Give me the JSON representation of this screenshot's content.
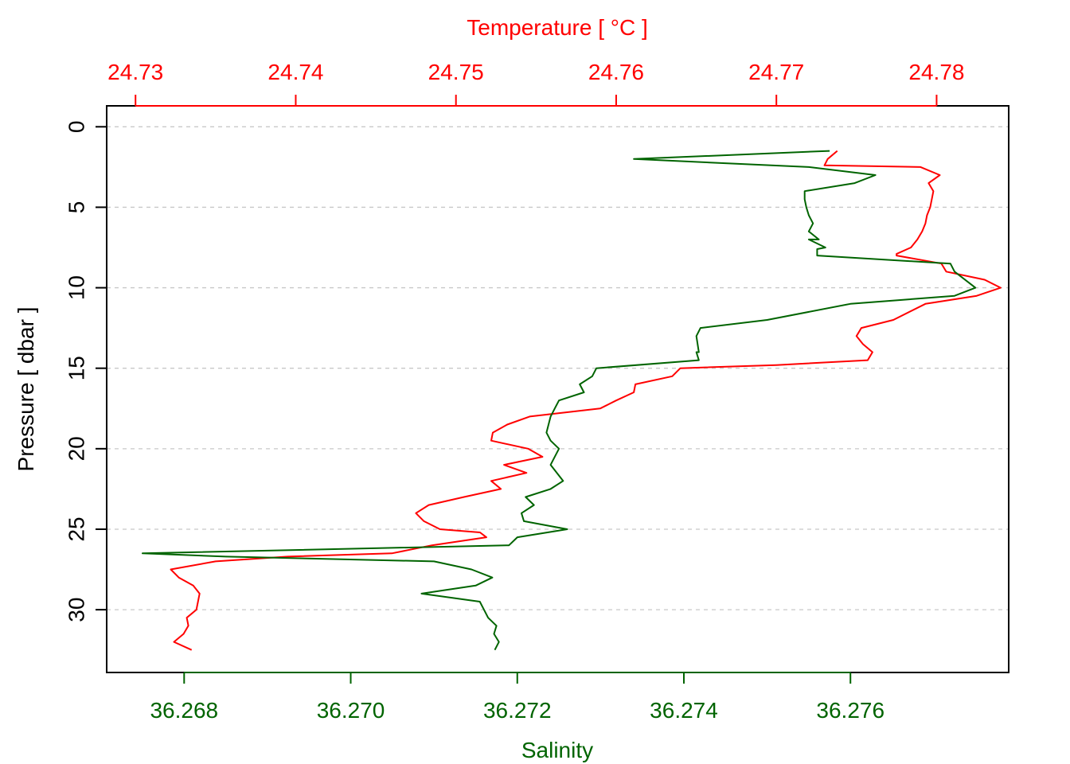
{
  "chart_data": {
    "type": "line",
    "top_axis": {
      "label": "Temperature [ °C ]",
      "color": "#ff0000",
      "range": [
        24.7282,
        24.7845
      ],
      "ticks": [
        24.73,
        24.74,
        24.75,
        24.76,
        24.77,
        24.78
      ],
      "tick_labels": [
        "24.73",
        "24.74",
        "24.75",
        "24.76",
        "24.77",
        "24.78"
      ]
    },
    "bottom_axis": {
      "label": "Salinity",
      "color": "#006400",
      "range": [
        36.26707,
        36.2779
      ],
      "ticks": [
        36.268,
        36.27,
        36.272,
        36.274,
        36.276
      ],
      "tick_labels": [
        "36.268",
        "36.270",
        "36.272",
        "36.274",
        "36.276"
      ]
    },
    "y_axis": {
      "label": "Pressure [ dbar ]",
      "range": [
        -1.3,
        33.9
      ],
      "reversed": true,
      "ticks": [
        0,
        5,
        10,
        15,
        20,
        25,
        30
      ],
      "tick_labels": [
        "0",
        "5",
        "10",
        "15",
        "20",
        "25",
        "30"
      ]
    },
    "grid": "horizontal dotted",
    "series": [
      {
        "axis": "top",
        "color": "#ff0000",
        "points": [
          [
            24.7738,
            1.5
          ],
          [
            24.7732,
            2.0
          ],
          [
            24.773,
            2.4
          ],
          [
            24.779,
            2.5
          ],
          [
            24.7802,
            3.0
          ],
          [
            24.7795,
            3.5
          ],
          [
            24.7798,
            4.0
          ],
          [
            24.7797,
            4.5
          ],
          [
            24.7796,
            5.0
          ],
          [
            24.7794,
            5.5
          ],
          [
            24.7793,
            6.0
          ],
          [
            24.7791,
            6.5
          ],
          [
            24.7788,
            7.0
          ],
          [
            24.7784,
            7.5
          ],
          [
            24.7775,
            7.9
          ],
          [
            24.7775,
            8.0
          ],
          [
            24.7803,
            8.5
          ],
          [
            24.7806,
            9.0
          ],
          [
            24.783,
            9.5
          ],
          [
            24.784,
            10.0
          ],
          [
            24.7825,
            10.5
          ],
          [
            24.7793,
            11.0
          ],
          [
            24.7773,
            12.0
          ],
          [
            24.7753,
            12.5
          ],
          [
            24.775,
            13.0
          ],
          [
            24.7754,
            13.5
          ],
          [
            24.776,
            14.0
          ],
          [
            24.7757,
            14.5
          ],
          [
            24.77,
            14.8
          ],
          [
            24.764,
            15.0
          ],
          [
            24.7635,
            15.5
          ],
          [
            24.7612,
            16.0
          ],
          [
            24.7611,
            16.5
          ],
          [
            24.76,
            17.0
          ],
          [
            24.759,
            17.5
          ],
          [
            24.7546,
            18.0
          ],
          [
            24.7532,
            18.5
          ],
          [
            24.7523,
            19.0
          ],
          [
            24.7522,
            19.5
          ],
          [
            24.7545,
            20.0
          ],
          [
            24.7554,
            20.5
          ],
          [
            24.753,
            21.0
          ],
          [
            24.7544,
            21.5
          ],
          [
            24.7522,
            22.0
          ],
          [
            24.7528,
            22.5
          ],
          [
            24.7505,
            23.0
          ],
          [
            24.7483,
            23.5
          ],
          [
            24.7475,
            24.0
          ],
          [
            24.748,
            24.5
          ],
          [
            24.749,
            25.0
          ],
          [
            24.7515,
            25.2
          ],
          [
            24.7519,
            25.5
          ],
          [
            24.7485,
            26.0
          ],
          [
            24.746,
            26.5
          ],
          [
            24.7395,
            26.7
          ],
          [
            24.735,
            27.0
          ],
          [
            24.7322,
            27.5
          ],
          [
            24.7327,
            28.0
          ],
          [
            24.7336,
            28.5
          ],
          [
            24.734,
            29.0
          ],
          [
            24.7339,
            29.5
          ],
          [
            24.7338,
            30.0
          ],
          [
            24.7332,
            30.5
          ],
          [
            24.7333,
            31.0
          ],
          [
            24.733,
            31.5
          ],
          [
            24.7324,
            32.0
          ],
          [
            24.7335,
            32.5
          ]
        ]
      },
      {
        "axis": "bottom",
        "color": "#006400",
        "points": [
          [
            36.27575,
            1.5
          ],
          [
            36.2734,
            2.0
          ],
          [
            36.2755,
            2.5
          ],
          [
            36.2763,
            3.0
          ],
          [
            36.27605,
            3.5
          ],
          [
            36.27545,
            4.0
          ],
          [
            36.27545,
            4.5
          ],
          [
            36.27547,
            5.0
          ],
          [
            36.2755,
            5.5
          ],
          [
            36.27555,
            6.0
          ],
          [
            36.2755,
            6.5
          ],
          [
            36.27562,
            7.0
          ],
          [
            36.2755,
            7.0
          ],
          [
            36.2757,
            7.5
          ],
          [
            36.2756,
            7.6
          ],
          [
            36.2756,
            8.0
          ],
          [
            36.2772,
            8.5
          ],
          [
            36.27725,
            9.0
          ],
          [
            36.2775,
            10.0
          ],
          [
            36.27725,
            10.5
          ],
          [
            36.276,
            11.0
          ],
          [
            36.275,
            12.0
          ],
          [
            36.2742,
            12.5
          ],
          [
            36.27415,
            13.0
          ],
          [
            36.27418,
            14.0
          ],
          [
            36.27415,
            14.0
          ],
          [
            36.27418,
            14.5
          ],
          [
            36.27295,
            15.0
          ],
          [
            36.2729,
            15.5
          ],
          [
            36.27275,
            16.0
          ],
          [
            36.2728,
            16.5
          ],
          [
            36.2725,
            17.0
          ],
          [
            36.27245,
            17.5
          ],
          [
            36.2724,
            18.0
          ],
          [
            36.27235,
            19.0
          ],
          [
            36.2724,
            19.5
          ],
          [
            36.2725,
            20.0
          ],
          [
            36.2724,
            21.0
          ],
          [
            36.27255,
            22.0
          ],
          [
            36.2724,
            22.5
          ],
          [
            36.2721,
            23.0
          ],
          [
            36.2722,
            23.5
          ],
          [
            36.27205,
            24.0
          ],
          [
            36.27208,
            24.5
          ],
          [
            36.2726,
            25.0
          ],
          [
            36.272,
            25.5
          ],
          [
            36.2719,
            26.0
          ],
          [
            36.2675,
            26.5
          ],
          [
            36.2685,
            26.7
          ],
          [
            36.271,
            27.0
          ],
          [
            36.27145,
            27.5
          ],
          [
            36.2717,
            28.0
          ],
          [
            36.2715,
            28.5
          ],
          [
            36.27085,
            29.0
          ],
          [
            36.27155,
            29.5
          ],
          [
            36.2716,
            30.0
          ],
          [
            36.27165,
            30.5
          ],
          [
            36.27175,
            31.0
          ],
          [
            36.27172,
            31.5
          ],
          [
            36.27178,
            32.0
          ],
          [
            36.27173,
            32.5
          ]
        ]
      }
    ]
  }
}
